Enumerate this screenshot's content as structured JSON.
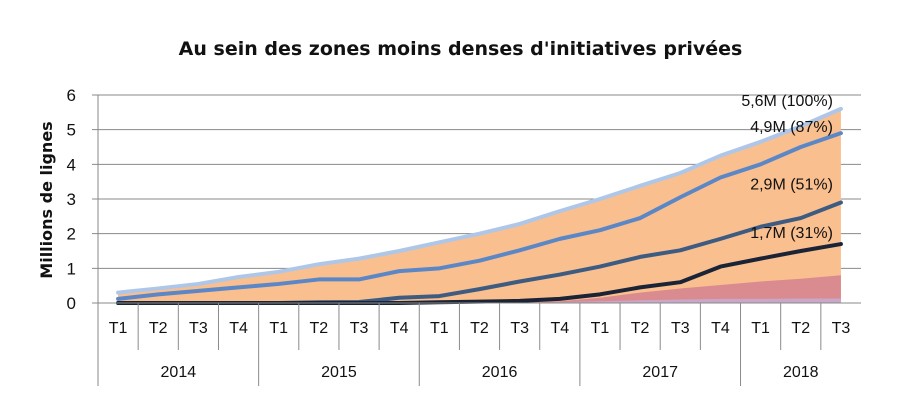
{
  "chart_data": {
    "type": "area",
    "title": "Au sein des zones moins denses d'initiatives privées",
    "ylabel": "Millions de lignes",
    "xlabel": "",
    "ylim": [
      0,
      6
    ],
    "yticks": [
      "0",
      "1",
      "2",
      "3",
      "4",
      "5",
      "6"
    ],
    "grid": true,
    "legend": "none",
    "categories": [
      "T1",
      "T2",
      "T3",
      "T4",
      "T1",
      "T2",
      "T3",
      "T4",
      "T1",
      "T2",
      "T3",
      "T4",
      "T1",
      "T2",
      "T3",
      "T4",
      "T1",
      "T2",
      "T3"
    ],
    "years": [
      {
        "label": "2014",
        "quarters": 4
      },
      {
        "label": "2015",
        "quarters": 4
      },
      {
        "label": "2016",
        "quarters": 4
      },
      {
        "label": "2017",
        "quarters": 4
      },
      {
        "label": "2018",
        "quarters": 3
      }
    ],
    "series": [
      {
        "values": [
          0.3,
          0.42,
          0.55,
          0.75,
          0.9,
          1.12,
          1.28,
          1.5,
          1.75,
          2.0,
          2.28,
          2.65,
          3.0,
          3.38,
          3.75,
          4.25,
          4.65,
          5.1,
          5.6
        ],
        "color": "#aec7e8",
        "fill": "#f9bf8f"
      },
      {
        "values": [
          0.12,
          0.25,
          0.35,
          0.45,
          0.55,
          0.68,
          0.68,
          0.92,
          1.0,
          1.22,
          1.52,
          1.85,
          2.1,
          2.45,
          3.05,
          3.62,
          4.0,
          4.5,
          4.9
        ],
        "color": "#5b87c7"
      },
      {
        "values": [
          0.0,
          0.0,
          0.0,
          0.0,
          0.0,
          0.02,
          0.03,
          0.15,
          0.2,
          0.4,
          0.62,
          0.82,
          1.05,
          1.33,
          1.52,
          1.85,
          2.2,
          2.45,
          2.9
        ],
        "color": "#3e5b82"
      },
      {
        "values": [
          0.0,
          0.0,
          0.0,
          0.0,
          0.0,
          0.0,
          0.0,
          0.0,
          0.02,
          0.04,
          0.06,
          0.12,
          0.25,
          0.45,
          0.6,
          1.05,
          1.28,
          1.5,
          1.7
        ],
        "color": "#1a2436"
      },
      {
        "values": [
          0.0,
          0.0,
          0.0,
          0.0,
          0.0,
          0.0,
          0.0,
          0.0,
          0.0,
          0.0,
          0.02,
          0.05,
          0.15,
          0.3,
          0.42,
          0.52,
          0.62,
          0.7,
          0.8
        ],
        "color": "#d98b8f",
        "fill": "#d98b8f"
      },
      {
        "values": [
          0.0,
          0.0,
          0.0,
          0.0,
          0.0,
          0.0,
          0.0,
          0.0,
          0.0,
          0.0,
          0.0,
          0.02,
          0.05,
          0.08,
          0.1,
          0.12,
          0.12,
          0.13,
          0.13
        ],
        "color": "#c9a7c9",
        "fill": "#c9a7c9"
      }
    ],
    "annotations": [
      {
        "text": "5,6M (100%)",
        "x_index": 18,
        "y": 5.6
      },
      {
        "text": "4,9M (87%)",
        "x_index": 18,
        "y": 4.9
      },
      {
        "text": "2,9M (51%)",
        "x_index": 18,
        "y": 2.9
      },
      {
        "text": "1,7M (31%)",
        "x_index": 18,
        "y": 1.7
      }
    ],
    "colors": {
      "grid": "#8a8a8a",
      "axis": "#8a8a8a"
    }
  }
}
